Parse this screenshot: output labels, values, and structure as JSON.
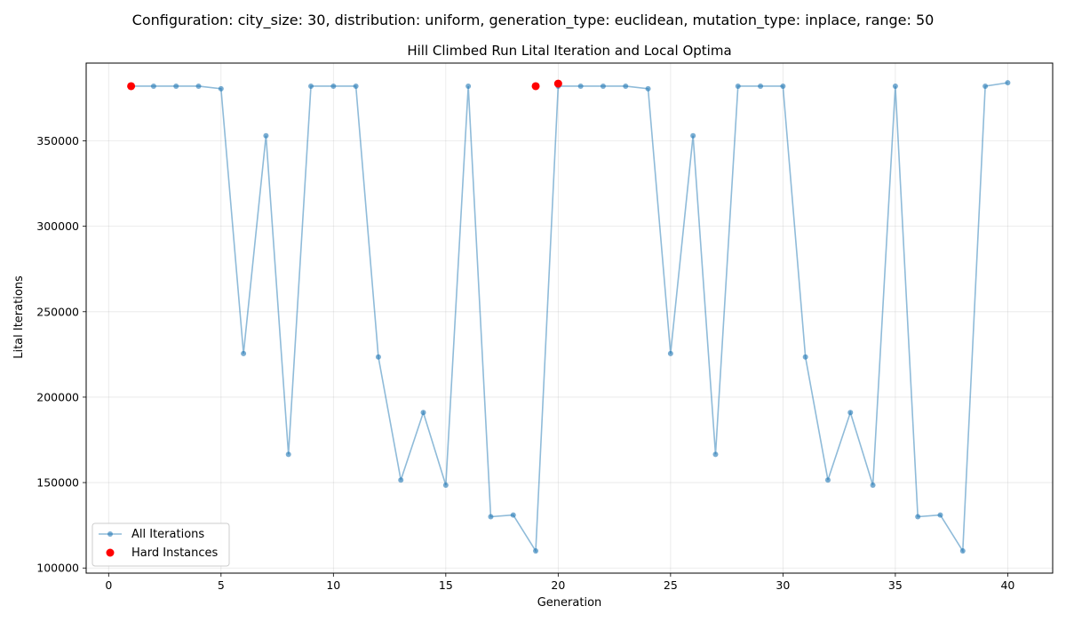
{
  "chart_data": {
    "type": "line",
    "suptitle": "Configuration: city_size: 30, distribution: uniform, generation_type: euclidean, mutation_type: inplace, range: 50",
    "title": "Hill Climbed Run Lital Iteration and Local Optima",
    "xlabel": "Generation",
    "ylabel": "Lital Iterations",
    "xlim": [
      -1,
      42
    ],
    "ylim": [
      97000,
      395500
    ],
    "xticks": [
      0,
      5,
      10,
      15,
      20,
      25,
      30,
      35,
      40
    ],
    "yticks": [
      100000,
      150000,
      200000,
      250000,
      300000,
      350000
    ],
    "grid": true,
    "legend_position": "lower-left",
    "series": [
      {
        "name": "All Iterations",
        "kind": "line",
        "color": "#1f77b4",
        "x": [
          1,
          2,
          3,
          4,
          5,
          6,
          7,
          8,
          9,
          10,
          11,
          12,
          13,
          14,
          15,
          16,
          17,
          18,
          19,
          20,
          21,
          22,
          23,
          24,
          25,
          26,
          27,
          28,
          29,
          30,
          31,
          32,
          33,
          34,
          35,
          36,
          37,
          38,
          39,
          40
        ],
        "y": [
          382000,
          382000,
          382000,
          382000,
          380500,
          225500,
          353000,
          166500,
          382000,
          382000,
          382000,
          223500,
          151500,
          191000,
          148500,
          382000,
          130000,
          131000,
          110000,
          382000,
          382000,
          382000,
          382000,
          380500,
          225500,
          353000,
          166500,
          382000,
          382000,
          382000,
          223500,
          151500,
          191000,
          148500,
          382000,
          130000,
          131000,
          110000,
          382000,
          384000
        ]
      },
      {
        "name": "Hard Instances",
        "kind": "scatter",
        "color": "#ff0000",
        "x": [
          1,
          19,
          20
        ],
        "y": [
          382000,
          382000,
          383500
        ]
      }
    ]
  }
}
